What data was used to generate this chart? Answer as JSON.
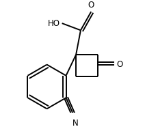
{
  "bg_color": "#ffffff",
  "line_color": "#000000",
  "lw": 1.4,
  "figsize": [
    2.12,
    1.86
  ],
  "dpi": 100,
  "xlim": [
    0,
    212
  ],
  "ylim": [
    0,
    186
  ]
}
